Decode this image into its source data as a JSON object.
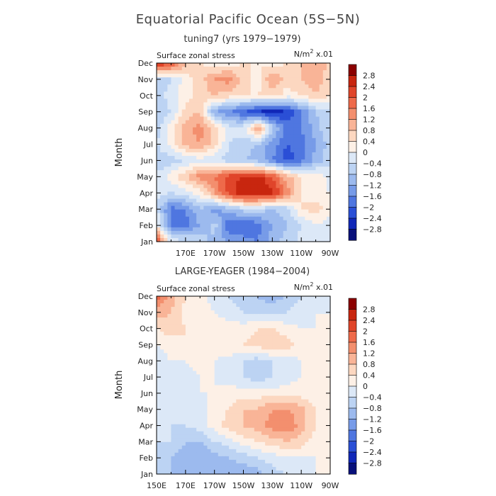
{
  "figure": {
    "title": "Equatorial Pacific Ocean (5S−5N)"
  },
  "chart_data": [
    {
      "type": "heatmap",
      "title": "tuning7 (yrs 1979−1979)",
      "variable": "Surface zonal stress",
      "units_base": "N/m",
      "units_sup": "2",
      "units_tail": " x.01",
      "ylabel": "Month",
      "x_tick_labels": [
        "170E",
        "170W",
        "150W",
        "130W",
        "110W",
        "90W"
      ],
      "y_tick_labels": [
        "Jan",
        "Feb",
        "Mar",
        "Apr",
        "May",
        "Jun",
        "Jul",
        "Aug",
        "Sep",
        "Oct",
        "Nov",
        "Dec"
      ],
      "x_range": [
        "150E",
        "90W"
      ],
      "legend_position": "right",
      "colorbar_levels": [
        "2.8",
        "2.4",
        "2",
        "1.6",
        "1.2",
        "0.8",
        "0.4",
        "0",
        "−0.4",
        "−0.8",
        "−1.2",
        "−1.6",
        "−2",
        "−2.4",
        "−2.8"
      ],
      "colorbar_colors": [
        "#8b0000",
        "#c8260f",
        "#e0452a",
        "#ee6a4a",
        "#f38f6e",
        "#f9b497",
        "#fcd7c0",
        "#fdf0e6",
        "#dce8f7",
        "#bcd3f3",
        "#9cbaee",
        "#779be8",
        "#4f76e0",
        "#2a4fd6",
        "#1027b8",
        "#08107a"
      ],
      "x_lon": [
        150,
        160,
        170,
        180,
        190,
        200,
        210,
        220,
        230,
        240,
        250,
        260,
        270
      ],
      "z": [
        [
          2.2,
          -0.2,
          -0.3,
          -0.5,
          -1.0,
          -1.2,
          -1.4,
          -1.6,
          -1.0,
          -0.6,
          -0.3,
          -0.2,
          -0.3
        ],
        [
          0.2,
          -1.6,
          -1.8,
          -1.2,
          -0.6,
          -2.0,
          -2.0,
          -1.8,
          -1.2,
          -0.8,
          -0.4,
          0.0,
          -0.3
        ],
        [
          -0.4,
          -1.8,
          -1.6,
          -0.8,
          -1.4,
          -1.0,
          -0.6,
          -0.6,
          -0.8,
          -0.6,
          0.4,
          0.6,
          0.2
        ],
        [
          -0.3,
          -0.4,
          -0.2,
          0.2,
          1.2,
          2.2,
          2.8,
          2.8,
          2.6,
          1.4,
          0.4,
          0.2,
          0.0
        ],
        [
          -0.3,
          0.2,
          0.8,
          1.4,
          1.6,
          2.2,
          2.4,
          2.6,
          2.0,
          1.0,
          0.4,
          0.3,
          -0.2
        ],
        [
          -0.8,
          -0.6,
          -0.4,
          -0.2,
          -0.4,
          -0.6,
          -0.8,
          -1.0,
          -1.6,
          -2.2,
          -1.8,
          -1.0,
          -0.6
        ],
        [
          -0.4,
          0.2,
          1.0,
          1.2,
          0.6,
          -0.4,
          -0.6,
          -0.8,
          -1.4,
          -2.0,
          -1.8,
          -1.2,
          -0.6
        ],
        [
          -0.6,
          0.2,
          1.0,
          1.4,
          0.6,
          -0.2,
          -0.2,
          1.2,
          -0.6,
          -1.8,
          -1.6,
          -1.0,
          -0.4
        ],
        [
          -0.8,
          -0.4,
          0.6,
          0.8,
          -1.2,
          -1.6,
          -2.0,
          -2.4,
          -2.8,
          -2.4,
          -1.6,
          -0.8,
          -0.4
        ],
        [
          -0.6,
          -0.2,
          0.2,
          0.6,
          0.8,
          0.6,
          0.4,
          0.4,
          0.6,
          0.2,
          0.4,
          0.8,
          0.4
        ],
        [
          -0.8,
          -0.4,
          0.2,
          0.6,
          1.2,
          1.4,
          0.6,
          0.2,
          1.2,
          0.6,
          0.8,
          1.0,
          0.6
        ],
        [
          2.6,
          2.0,
          0.8,
          0.4,
          0.2,
          0.2,
          0.4,
          0.4,
          0.2,
          0.4,
          0.8,
          1.2,
          0.6
        ]
      ]
    },
    {
      "type": "heatmap",
      "title": "LARGE-YEAGER (1984−2004)",
      "variable": "Surface zonal stress",
      "units_base": "N/m",
      "units_sup": "2",
      "units_tail": " x.01",
      "ylabel": "Month",
      "x_tick_labels": [
        "150E",
        "170E",
        "170W",
        "150W",
        "130W",
        "110W",
        "90W"
      ],
      "y_tick_labels": [
        "Jan",
        "Feb",
        "Mar",
        "Apr",
        "May",
        "Jun",
        "Jul",
        "Aug",
        "Sep",
        "Oct",
        "Nov",
        "Dec"
      ],
      "x_range": [
        "150E",
        "90W"
      ],
      "legend_position": "right",
      "colorbar_levels": [
        "2.8",
        "2.4",
        "2",
        "1.6",
        "1.2",
        "0.8",
        "0.4",
        "0",
        "−0.4",
        "−0.8",
        "−1.2",
        "−1.6",
        "−2",
        "−2.4",
        "−2.8"
      ],
      "colorbar_colors": [
        "#8b0000",
        "#c8260f",
        "#e0452a",
        "#ee6a4a",
        "#f38f6e",
        "#f9b497",
        "#fcd7c0",
        "#fdf0e6",
        "#dce8f7",
        "#bcd3f3",
        "#9cbaee",
        "#779be8",
        "#4f76e0",
        "#2a4fd6",
        "#1027b8",
        "#08107a"
      ],
      "x_lon": [
        150,
        160,
        170,
        180,
        190,
        200,
        210,
        220,
        230,
        240,
        250,
        260,
        270
      ],
      "z": [
        [
          -0.6,
          -0.8,
          -1.0,
          -1.0,
          -1.2,
          -1.2,
          -1.2,
          -1.0,
          -0.6,
          -0.4,
          -0.2,
          0.0,
          0.0
        ],
        [
          -0.4,
          -0.8,
          -1.0,
          -1.2,
          -1.0,
          -0.8,
          -0.6,
          -0.4,
          -0.2,
          0.0,
          0.0,
          0.0,
          0.0
        ],
        [
          -0.4,
          -0.4,
          -0.8,
          -0.8,
          -0.4,
          -0.2,
          0.2,
          0.4,
          0.6,
          0.8,
          0.6,
          0.2,
          0.0
        ],
        [
          -0.4,
          -0.4,
          -0.4,
          -0.2,
          0.2,
          0.6,
          0.8,
          1.0,
          1.4,
          1.6,
          1.0,
          0.4,
          0.0
        ],
        [
          -0.4,
          -0.2,
          -0.4,
          -0.2,
          0.2,
          0.4,
          0.8,
          0.8,
          1.2,
          1.2,
          1.0,
          0.4,
          0.0
        ],
        [
          -0.4,
          -0.2,
          -0.2,
          0.0,
          0.0,
          0.2,
          0.2,
          0.2,
          0.2,
          0.2,
          0.2,
          0.0,
          0.0
        ],
        [
          -0.2,
          -0.2,
          -0.2,
          0.0,
          0.0,
          -0.2,
          -0.4,
          -0.6,
          -0.4,
          -0.2,
          0.0,
          0.0,
          0.0
        ],
        [
          -0.2,
          0.0,
          0.0,
          0.2,
          0.0,
          -0.2,
          -0.4,
          -0.6,
          -0.4,
          -0.2,
          0.0,
          0.0,
          0.0
        ],
        [
          0.0,
          0.2,
          0.4,
          0.4,
          0.4,
          0.4,
          0.4,
          0.6,
          0.8,
          0.6,
          0.2,
          0.0,
          0.0
        ],
        [
          0.4,
          0.6,
          0.4,
          0.2,
          0.2,
          0.2,
          0.2,
          0.4,
          0.4,
          0.2,
          0.0,
          0.0,
          0.0
        ],
        [
          1.0,
          0.8,
          0.2,
          0.2,
          0.0,
          -0.2,
          -0.4,
          -0.6,
          -0.6,
          -0.4,
          -0.2,
          0.0,
          0.0
        ],
        [
          1.8,
          1.0,
          0.4,
          0.2,
          -0.2,
          -0.4,
          -0.6,
          -0.8,
          -1.0,
          -0.8,
          -0.4,
          -0.2,
          0.0
        ]
      ]
    }
  ]
}
